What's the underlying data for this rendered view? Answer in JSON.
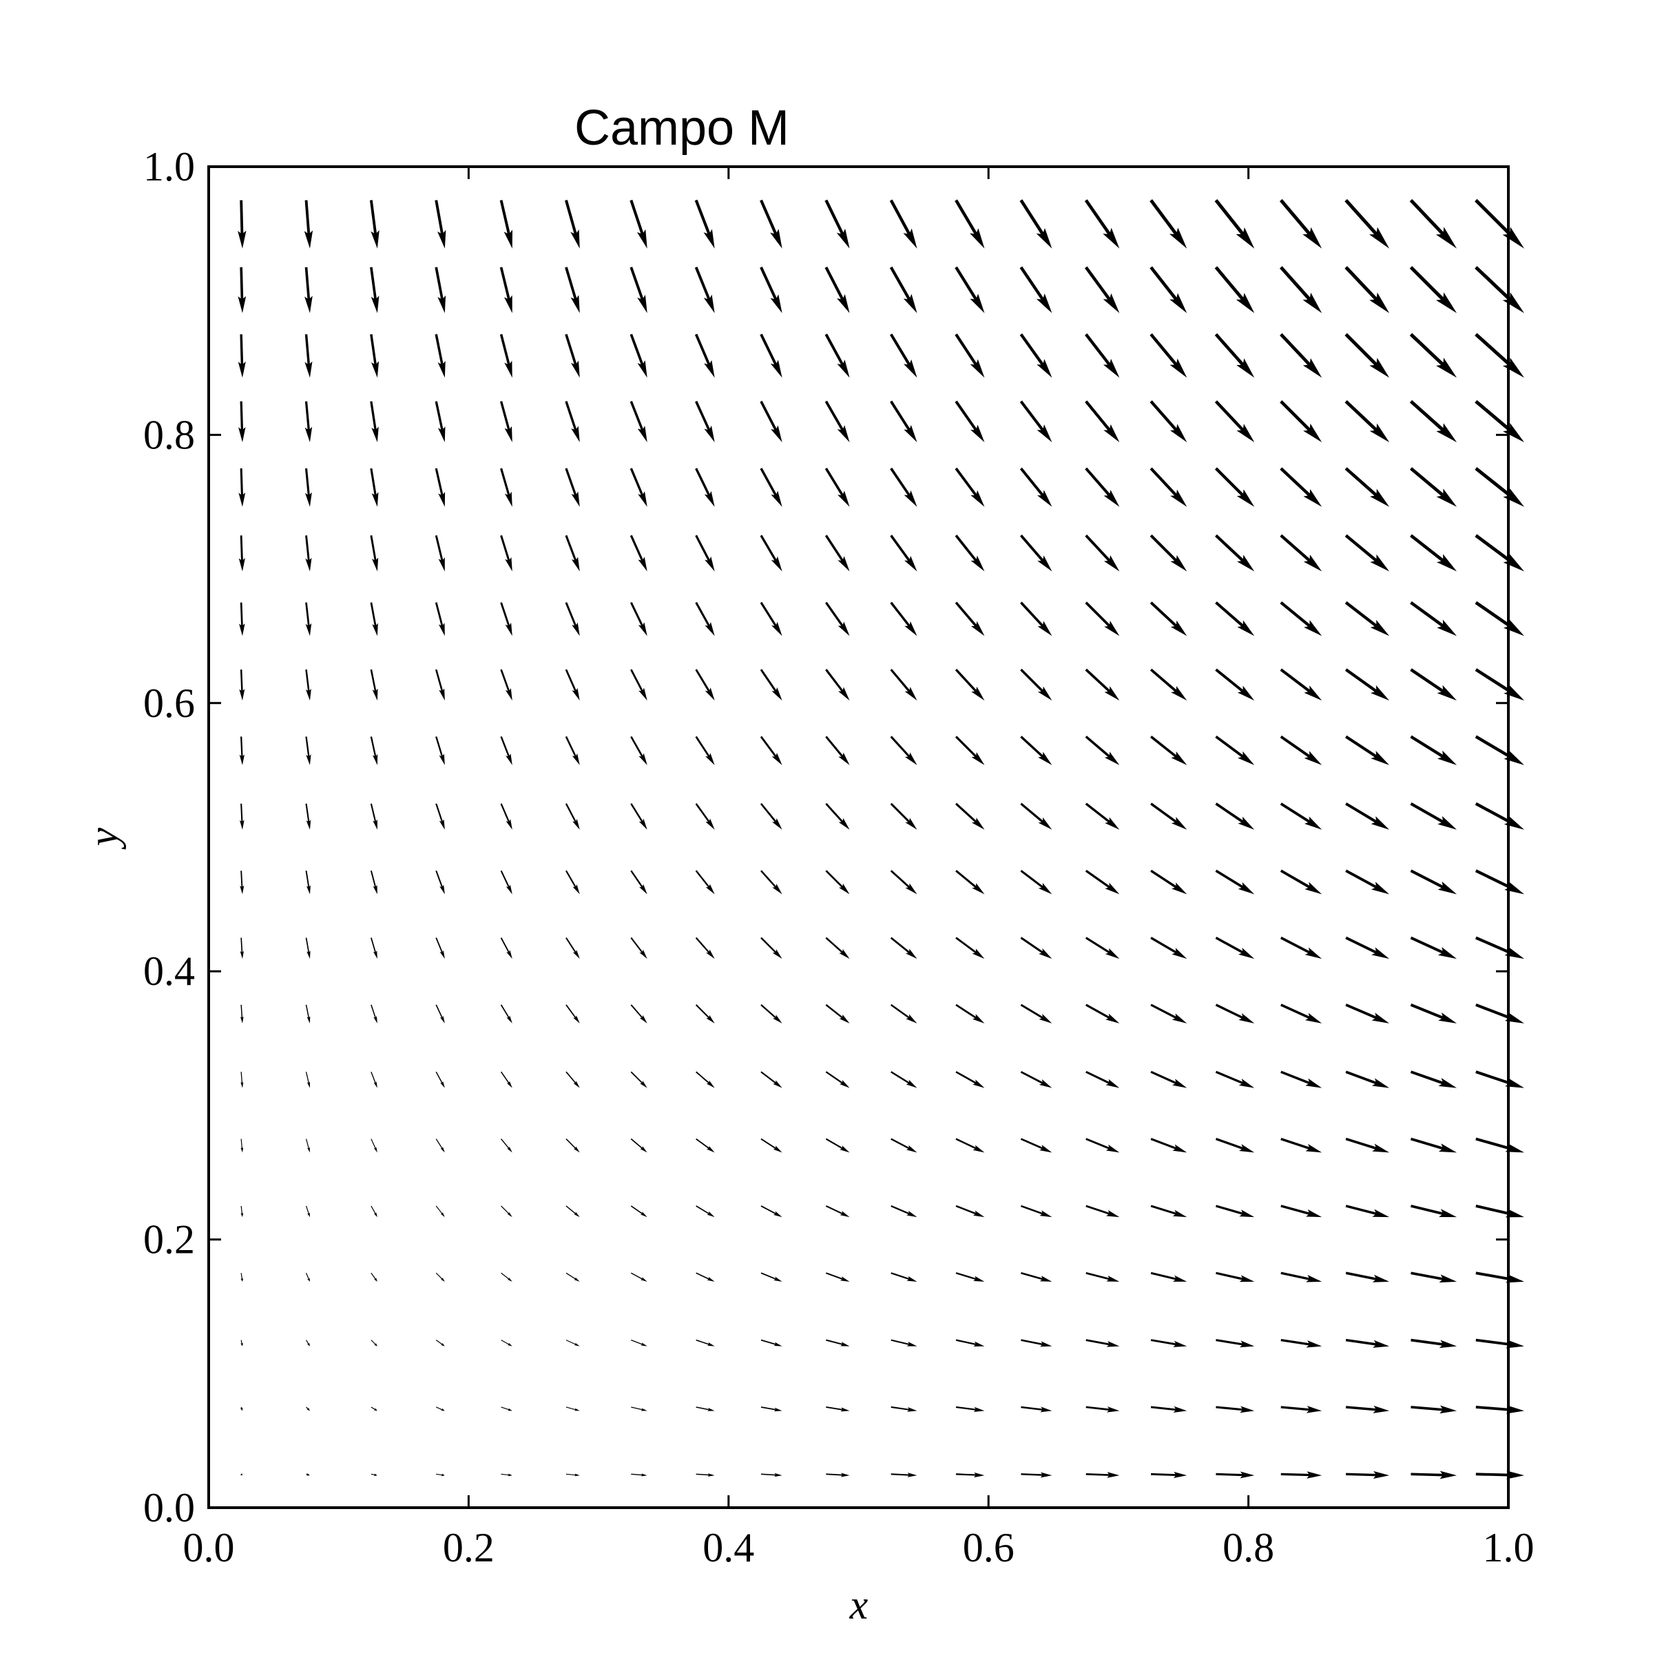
{
  "chart_data": {
    "type": "quiver",
    "title": "Campo M",
    "xlabel": "x",
    "ylabel": "y",
    "xlim": [
      0.0,
      1.0
    ],
    "ylim": [
      0.0,
      1.0
    ],
    "xticks": [
      "0.0",
      "0.2",
      "0.4",
      "0.6",
      "0.8",
      "1.0"
    ],
    "yticks": [
      "0.0",
      "0.2",
      "0.4",
      "0.6",
      "0.8",
      "1.0"
    ],
    "grid": false,
    "grid_points_per_axis": 20,
    "grid_start": 0.025,
    "grid_step": 0.05,
    "field": {
      "u": "x",
      "v": "-y",
      "magnitude_reference": 1.0,
      "note_scale": "arrow length proportional to magnitude"
    },
    "arrow_color": "#000000"
  }
}
